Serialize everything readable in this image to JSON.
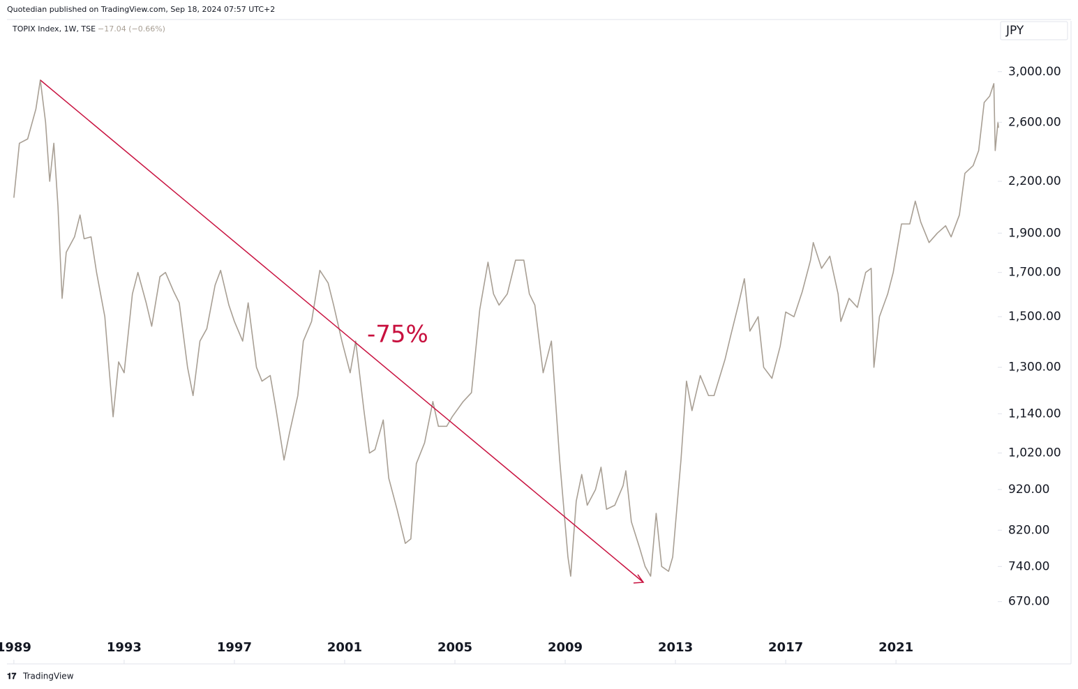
{
  "header": {
    "publisher": "Quotedian published on TradingView.com, Sep 18, 2024 07:57 UTC+2",
    "currency": "JPY",
    "footer": "TradingView"
  },
  "chart_data": {
    "type": "line",
    "title": "TOPIX Index, 1W, TSE",
    "subtitle": "−17.04 (−0.66%)",
    "annotations": [
      "-75%"
    ],
    "log_scale": true,
    "grid": false,
    "x": [
      1989.0,
      1989.2,
      1989.5,
      1989.8,
      1989.96,
      1990.15,
      1990.3,
      1990.45,
      1990.6,
      1990.75,
      1990.9,
      1991.2,
      1991.4,
      1991.55,
      1991.8,
      1992.0,
      1992.3,
      1992.45,
      1992.6,
      1992.8,
      1993.0,
      1993.3,
      1993.5,
      1993.8,
      1994.0,
      1994.3,
      1994.5,
      1994.8,
      1995.0,
      1995.3,
      1995.5,
      1995.75,
      1996.0,
      1996.3,
      1996.5,
      1996.8,
      1997.0,
      1997.3,
      1997.5,
      1997.8,
      1998.0,
      1998.3,
      1998.5,
      1998.8,
      1999.0,
      1999.3,
      1999.5,
      1999.8,
      2000.1,
      2000.4,
      2000.6,
      2000.9,
      2001.2,
      2001.4,
      2001.7,
      2001.9,
      2002.1,
      2002.4,
      2002.6,
      2002.9,
      2003.2,
      2003.4,
      2003.6,
      2003.9,
      2004.2,
      2004.4,
      2004.7,
      2004.9,
      2005.3,
      2005.6,
      2005.9,
      2006.2,
      2006.4,
      2006.6,
      2006.9,
      2007.2,
      2007.5,
      2007.7,
      2007.9,
      2008.2,
      2008.5,
      2008.8,
      2009.1,
      2009.2,
      2009.4,
      2009.6,
      2009.8,
      2010.1,
      2010.3,
      2010.5,
      2010.8,
      2011.1,
      2011.2,
      2011.4,
      2011.7,
      2011.9,
      2012.1,
      2012.3,
      2012.5,
      2012.75,
      2012.9,
      2013.2,
      2013.4,
      2013.6,
      2013.9,
      2014.2,
      2014.4,
      2014.8,
      2015.0,
      2015.3,
      2015.5,
      2015.7,
      2016.0,
      2016.2,
      2016.5,
      2016.8,
      2017.0,
      2017.3,
      2017.6,
      2017.9,
      2018.0,
      2018.3,
      2018.6,
      2018.9,
      2019.0,
      2019.3,
      2019.6,
      2019.9,
      2020.1,
      2020.2,
      2020.4,
      2020.7,
      2020.9,
      2021.2,
      2021.5,
      2021.7,
      2021.9,
      2022.2,
      2022.5,
      2022.8,
      2023.0,
      2023.3,
      2023.5,
      2023.8,
      2024.0,
      2024.2,
      2024.4,
      2024.55,
      2024.6,
      2024.7,
      2024.72
    ],
    "series": [
      {
        "name": "TOPIX Index",
        "color": "#a89f94",
        "values": [
          2100,
          2450,
          2480,
          2700,
          2930,
          2600,
          2200,
          2450,
          2050,
          1580,
          1800,
          1880,
          2000,
          1870,
          1880,
          1700,
          1500,
          1300,
          1130,
          1320,
          1280,
          1600,
          1700,
          1560,
          1460,
          1680,
          1700,
          1610,
          1560,
          1300,
          1200,
          1400,
          1450,
          1640,
          1710,
          1550,
          1480,
          1400,
          1560,
          1300,
          1250,
          1270,
          1160,
          1000,
          1080,
          1200,
          1400,
          1480,
          1710,
          1650,
          1550,
          1400,
          1280,
          1400,
          1150,
          1020,
          1030,
          1120,
          950,
          870,
          790,
          800,
          990,
          1050,
          1180,
          1100,
          1100,
          1130,
          1180,
          1210,
          1530,
          1750,
          1600,
          1550,
          1600,
          1760,
          1760,
          1600,
          1550,
          1280,
          1400,
          1000,
          760,
          720,
          890,
          960,
          880,
          920,
          980,
          870,
          880,
          930,
          970,
          840,
          780,
          740,
          720,
          860,
          740,
          730,
          760,
          1000,
          1250,
          1150,
          1270,
          1200,
          1200,
          1330,
          1420,
          1560,
          1670,
          1440,
          1500,
          1300,
          1260,
          1380,
          1520,
          1500,
          1610,
          1760,
          1850,
          1720,
          1780,
          1600,
          1480,
          1580,
          1540,
          1700,
          1720,
          1300,
          1500,
          1600,
          1700,
          1950,
          1950,
          2080,
          1960,
          1850,
          1900,
          1940,
          1880,
          2000,
          2250,
          2300,
          2400,
          2750,
          2800,
          2900,
          2400,
          2600,
          2560
        ]
      }
    ],
    "xlim": [
      1988.75,
      2027.35
    ],
    "xticks": [
      1989,
      1993,
      1997,
      2001,
      2005,
      2009,
      2013,
      2017,
      2021
    ],
    "ylim": [
      564,
      3463
    ],
    "yticks": [
      {
        "value": 3000,
        "label": "3,000.00"
      },
      {
        "value": 2600,
        "label": "2,600.00"
      },
      {
        "value": 2200,
        "label": "2,200.00"
      },
      {
        "value": 1900,
        "label": "1,900.00"
      },
      {
        "value": 1700,
        "label": "1,700.00"
      },
      {
        "value": 1500,
        "label": "1,500.00"
      },
      {
        "value": 1300,
        "label": "1,300.00"
      },
      {
        "value": 1140,
        "label": "1,140.00"
      },
      {
        "value": 1020,
        "label": "1,020.00"
      },
      {
        "value": 920,
        "label": "920.00"
      },
      {
        "value": 820,
        "label": "820.00"
      },
      {
        "value": 740,
        "label": "740.00"
      },
      {
        "value": 670,
        "label": "670.00"
      }
    ]
  }
}
